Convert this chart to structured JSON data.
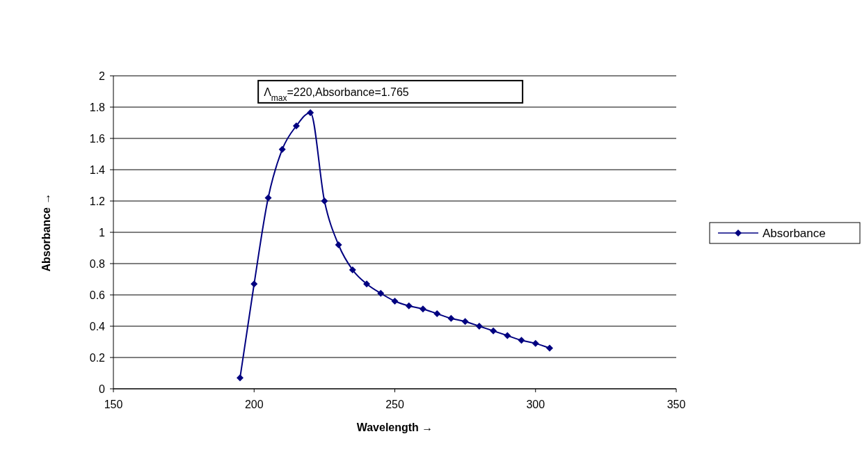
{
  "chart_data": {
    "type": "line",
    "xlabel": "Wavelength →",
    "ylabel": "Absorbance →",
    "x": [
      195,
      200,
      205,
      210,
      215,
      220,
      225,
      230,
      235,
      240,
      245,
      250,
      255,
      260,
      265,
      270,
      275,
      280,
      285,
      290,
      295,
      300,
      305
    ],
    "series": [
      {
        "name": "Absorbance",
        "color": "#000080",
        "values": [
          0.07,
          0.67,
          1.22,
          1.53,
          1.68,
          1.765,
          1.2,
          0.92,
          0.76,
          0.67,
          0.61,
          0.56,
          0.53,
          0.51,
          0.48,
          0.45,
          0.43,
          0.4,
          0.37,
          0.34,
          0.31,
          0.29,
          0.26
        ]
      }
    ],
    "xlim": [
      150,
      350
    ],
    "xticks": [
      150,
      200,
      250,
      300,
      350
    ],
    "ylim": [
      0,
      2
    ],
    "yticks": [
      0,
      0.2,
      0.4,
      0.6,
      0.8,
      1,
      1.2,
      1.4,
      1.6,
      1.8,
      2
    ],
    "grid": "y",
    "legend": "right",
    "marker": "diamond",
    "line_style": "solid",
    "annotations": [
      {
        "text": "Λ$_{max}$=220,Absorbance=1.765",
        "x": 220,
        "y": 1.765
      }
    ]
  }
}
